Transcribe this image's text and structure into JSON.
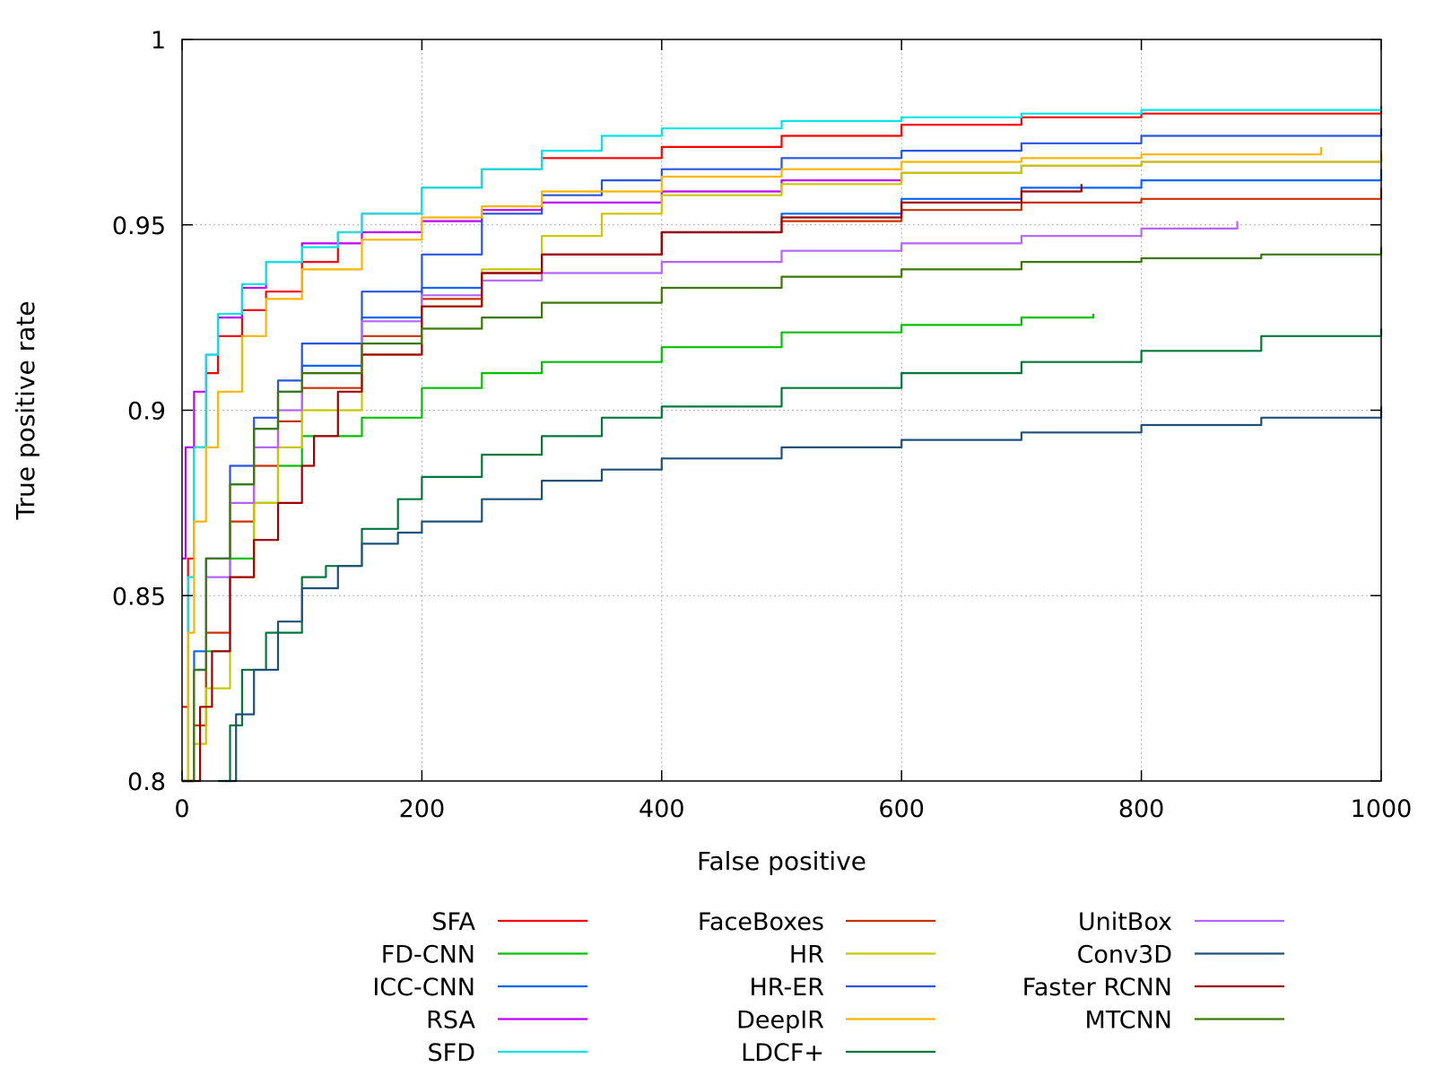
{
  "chart_data": {
    "type": "line",
    "title": "",
    "xlabel": "False positive",
    "ylabel": "True positive rate",
    "xlim": [
      0,
      1000
    ],
    "ylim": [
      0.8,
      1
    ],
    "xticks": [
      0,
      200,
      400,
      600,
      800,
      1000
    ],
    "xtick_labels": [
      "0",
      "200",
      "400",
      "600",
      "800",
      "1000"
    ],
    "yticks": [
      0.8,
      0.85,
      0.9,
      0.95,
      1
    ],
    "ytick_labels": [
      "0.8",
      "0.85",
      "0.9",
      "0.95",
      "1"
    ],
    "grid": true,
    "legend_position": "bottom",
    "series": [
      {
        "name": "SFA",
        "color": "#ff0000",
        "x": [
          0,
          5,
          10,
          20,
          30,
          50,
          70,
          100,
          130,
          150,
          200,
          250,
          300,
          400,
          500,
          600,
          700,
          800,
          1000
        ],
        "y": [
          0.82,
          0.86,
          0.89,
          0.91,
          0.92,
          0.927,
          0.932,
          0.94,
          0.948,
          0.953,
          0.96,
          0.965,
          0.968,
          0.971,
          0.974,
          0.977,
          0.979,
          0.98,
          0.982
        ]
      },
      {
        "name": "FD-CNN",
        "color": "#00c000",
        "x": [
          0,
          10,
          20,
          40,
          60,
          80,
          100,
          150,
          200,
          250,
          300,
          400,
          500,
          600,
          700,
          760
        ],
        "y": [
          0.8,
          0.815,
          0.835,
          0.86,
          0.875,
          0.885,
          0.893,
          0.898,
          0.906,
          0.91,
          0.913,
          0.917,
          0.921,
          0.923,
          0.925,
          0.926
        ]
      },
      {
        "name": "ICC-CNN",
        "color": "#0066ff",
        "x": [
          0,
          10,
          20,
          40,
          60,
          80,
          100,
          150,
          200,
          250,
          300,
          400,
          500,
          600,
          700,
          800,
          1000
        ],
        "y": [
          0.8,
          0.835,
          0.86,
          0.88,
          0.895,
          0.905,
          0.912,
          0.925,
          0.933,
          0.937,
          0.942,
          0.948,
          0.953,
          0.957,
          0.96,
          0.962,
          0.965
        ]
      },
      {
        "name": "RSA",
        "color": "#c000ff",
        "x": [
          0,
          3,
          10,
          20,
          30,
          50,
          70,
          100,
          150,
          200,
          250,
          300,
          400,
          500,
          600,
          700,
          800,
          1000
        ],
        "y": [
          0.86,
          0.89,
          0.905,
          0.915,
          0.925,
          0.933,
          0.94,
          0.945,
          0.948,
          0.951,
          0.954,
          0.956,
          0.959,
          0.962,
          0.964,
          0.966,
          0.967,
          0.969
        ]
      },
      {
        "name": "SFD",
        "color": "#00e5e5",
        "x": [
          0,
          5,
          10,
          20,
          30,
          50,
          70,
          100,
          130,
          150,
          200,
          250,
          300,
          350,
          400,
          500,
          600,
          700,
          800,
          1000
        ],
        "y": [
          0.8,
          0.855,
          0.89,
          0.915,
          0.926,
          0.934,
          0.94,
          0.944,
          0.948,
          0.953,
          0.96,
          0.965,
          0.97,
          0.974,
          0.976,
          0.978,
          0.979,
          0.98,
          0.981,
          0.982
        ]
      },
      {
        "name": "FaceBoxes",
        "color": "#c83200",
        "x": [
          0,
          10,
          20,
          40,
          60,
          80,
          100,
          150,
          200,
          250,
          300,
          400,
          500,
          600,
          700,
          800,
          1000
        ],
        "y": [
          0.8,
          0.815,
          0.84,
          0.87,
          0.885,
          0.897,
          0.906,
          0.92,
          0.93,
          0.937,
          0.942,
          0.948,
          0.951,
          0.954,
          0.956,
          0.957,
          0.96
        ]
      },
      {
        "name": "HR",
        "color": "#c8c800",
        "x": [
          0,
          10,
          20,
          40,
          60,
          80,
          100,
          150,
          200,
          250,
          300,
          350,
          400,
          500,
          600,
          700,
          800,
          1000
        ],
        "y": [
          0.8,
          0.81,
          0.825,
          0.855,
          0.875,
          0.89,
          0.9,
          0.915,
          0.928,
          0.938,
          0.947,
          0.953,
          0.958,
          0.961,
          0.964,
          0.966,
          0.967,
          0.97
        ]
      },
      {
        "name": "HR-ER",
        "color": "#2855e0",
        "x": [
          0,
          10,
          20,
          40,
          60,
          80,
          100,
          150,
          200,
          250,
          300,
          350,
          400,
          500,
          600,
          700,
          800,
          1000
        ],
        "y": [
          0.8,
          0.83,
          0.86,
          0.885,
          0.898,
          0.908,
          0.918,
          0.932,
          0.942,
          0.953,
          0.958,
          0.962,
          0.965,
          0.968,
          0.97,
          0.972,
          0.974,
          0.976
        ]
      },
      {
        "name": "DeepIR",
        "color": "#ffb400",
        "x": [
          0,
          5,
          10,
          20,
          30,
          50,
          70,
          100,
          150,
          200,
          250,
          300,
          400,
          500,
          600,
          700,
          800,
          950
        ],
        "y": [
          0.8,
          0.84,
          0.87,
          0.89,
          0.905,
          0.92,
          0.93,
          0.938,
          0.946,
          0.952,
          0.955,
          0.959,
          0.963,
          0.965,
          0.967,
          0.968,
          0.969,
          0.971
        ]
      },
      {
        "name": "LDCF+",
        "color": "#00783c",
        "x": [
          30,
          40,
          50,
          70,
          100,
          120,
          150,
          180,
          200,
          250,
          300,
          350,
          400,
          500,
          600,
          700,
          800,
          900,
          1000
        ],
        "y": [
          0.8,
          0.815,
          0.83,
          0.84,
          0.855,
          0.858,
          0.868,
          0.876,
          0.882,
          0.888,
          0.893,
          0.898,
          0.901,
          0.906,
          0.91,
          0.913,
          0.916,
          0.92,
          0.922
        ]
      },
      {
        "name": "UnitBox",
        "color": "#b464ff",
        "x": [
          0,
          10,
          20,
          40,
          60,
          80,
          100,
          150,
          200,
          250,
          300,
          400,
          500,
          600,
          700,
          800,
          880
        ],
        "y": [
          0.8,
          0.83,
          0.855,
          0.875,
          0.89,
          0.9,
          0.91,
          0.924,
          0.931,
          0.935,
          0.937,
          0.94,
          0.943,
          0.945,
          0.947,
          0.949,
          0.951
        ]
      },
      {
        "name": "Conv3D",
        "color": "#1e5078",
        "x": [
          35,
          45,
          60,
          80,
          100,
          130,
          150,
          180,
          200,
          250,
          300,
          350,
          400,
          500,
          600,
          700,
          800,
          900,
          1000
        ],
        "y": [
          0.8,
          0.818,
          0.83,
          0.843,
          0.852,
          0.858,
          0.864,
          0.867,
          0.87,
          0.876,
          0.881,
          0.884,
          0.887,
          0.89,
          0.892,
          0.894,
          0.896,
          0.898,
          0.901
        ]
      },
      {
        "name": "Faster RCNN",
        "color": "#a00000",
        "x": [
          0,
          15,
          25,
          40,
          60,
          80,
          100,
          110,
          130,
          150,
          200,
          250,
          300,
          400,
          500,
          600,
          700,
          750
        ],
        "y": [
          0.8,
          0.82,
          0.835,
          0.855,
          0.865,
          0.875,
          0.885,
          0.893,
          0.905,
          0.915,
          0.928,
          0.937,
          0.942,
          0.948,
          0.952,
          0.956,
          0.959,
          0.961
        ]
      },
      {
        "name": "MTCNN",
        "color": "#3c7800",
        "x": [
          0,
          10,
          20,
          40,
          60,
          80,
          100,
          150,
          200,
          250,
          300,
          400,
          500,
          600,
          700,
          800,
          900,
          1000
        ],
        "y": [
          0.8,
          0.83,
          0.86,
          0.88,
          0.895,
          0.905,
          0.91,
          0.918,
          0.922,
          0.925,
          0.929,
          0.933,
          0.936,
          0.938,
          0.94,
          0.941,
          0.942,
          0.944
        ]
      }
    ]
  }
}
